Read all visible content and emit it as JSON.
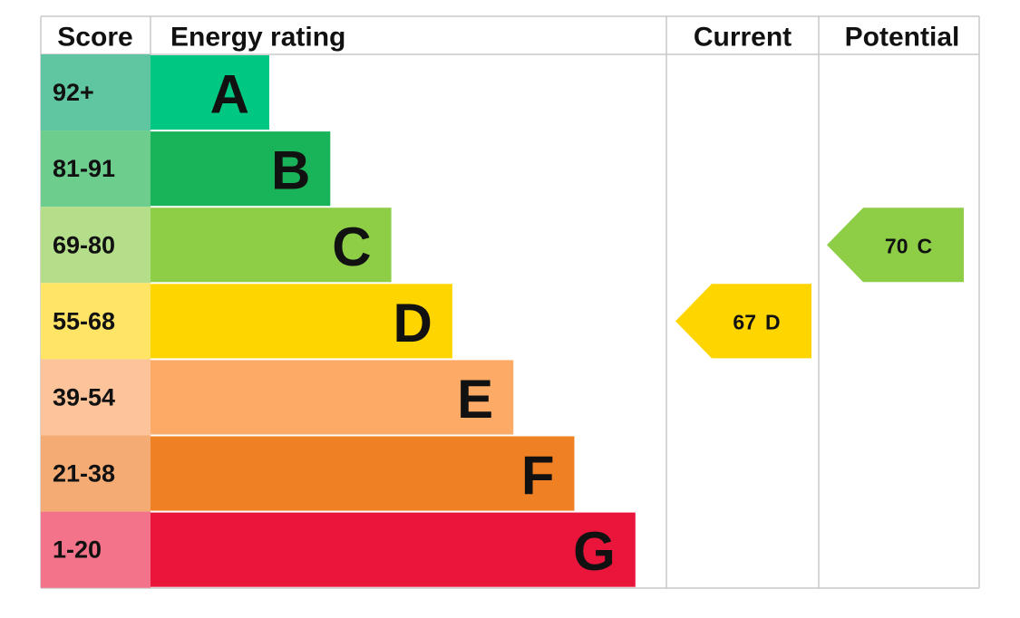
{
  "header": {
    "score": "Score",
    "rating": "Energy rating",
    "current": "Current",
    "potential": "Potential"
  },
  "rows": [
    {
      "score": "92+",
      "letter": "A",
      "color": "#00c781",
      "score_color": "#5fc6a1"
    },
    {
      "score": "81-91",
      "letter": "B",
      "color": "#19b459",
      "score_color": "#6ccd8d"
    },
    {
      "score": "69-80",
      "letter": "C",
      "color": "#8dce46",
      "score_color": "#b4de89"
    },
    {
      "score": "55-68",
      "letter": "D",
      "color": "#ffd500",
      "score_color": "#ffe466"
    },
    {
      "score": "39-54",
      "letter": "E",
      "color": "#fcaa65",
      "score_color": "#fdc49b"
    },
    {
      "score": "21-38",
      "letter": "F",
      "color": "#ef8023",
      "score_color": "#f4ab74"
    },
    {
      "score": "1-20",
      "letter": "G",
      "color": "#e9153b",
      "score_color": "#f2738a"
    }
  ],
  "current": {
    "score": 67,
    "rating": "D"
  },
  "potential": {
    "score": 70,
    "rating": "C"
  }
}
